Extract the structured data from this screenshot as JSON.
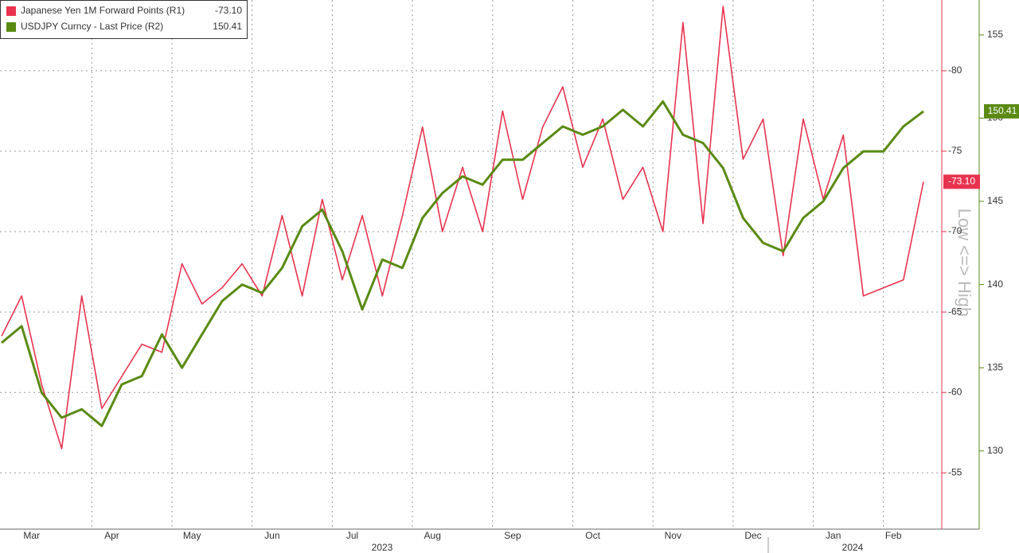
{
  "chart_data": {
    "type": "line",
    "categories": [
      null,
      null,
      "Mar",
      null,
      null,
      null,
      "Apr",
      null,
      null,
      null,
      "May",
      null,
      null,
      null,
      "Jun",
      null,
      null,
      null,
      "Jul",
      null,
      null,
      null,
      "Aug",
      null,
      null,
      null,
      "Sep",
      null,
      null,
      null,
      "Oct",
      null,
      null,
      null,
      "Nov",
      null,
      null,
      null,
      "Dec",
      null,
      null,
      null,
      "Jan",
      null,
      null,
      "Feb",
      null
    ],
    "year_labels": [
      "2023",
      "2024"
    ],
    "axis_annotation": "Low <=> High",
    "series": [
      {
        "name": "Japanese Yen 1M Forward Points (R1)",
        "color": "#e8334f",
        "axis": "y",
        "last_label": "-73.10",
        "values": [
          -63.5,
          -66,
          -60.5,
          -56.5,
          -66,
          -59,
          -61,
          -63,
          -62.5,
          -68,
          -65.5,
          -66.5,
          -68,
          -66,
          -71,
          -66,
          -72,
          -67,
          -71,
          -66,
          -71,
          -76.5,
          -70,
          -74,
          -70,
          -77.5,
          -72,
          -76.5,
          -79,
          -74,
          -77,
          -72,
          -74,
          -70,
          -83,
          -70.5,
          -84,
          -74.5,
          -77,
          -68.5,
          -77,
          -72,
          -76,
          -66,
          -66.5,
          -67,
          -73.1
        ]
      },
      {
        "name": "USDJPY Curncy - Last Price (R2)",
        "color": "#5a8a12",
        "axis": "y2",
        "last_label": "150.41",
        "values": [
          136.5,
          137.5,
          133.5,
          132,
          132.5,
          131.5,
          134,
          134.5,
          137,
          135,
          137,
          139,
          140,
          139.5,
          141,
          143.5,
          144.5,
          142,
          138.5,
          141.5,
          141,
          144,
          145.5,
          146.5,
          146,
          147.5,
          147.5,
          148.5,
          149.5,
          149,
          149.5,
          150.5,
          149.5,
          151,
          149,
          148.5,
          147,
          144,
          142.5,
          142,
          144,
          145,
          147,
          148,
          148,
          149.5,
          150.41
        ]
      }
    ],
    "ylim": [
      -51.5,
      -84.4
    ],
    "yticks": [
      -55,
      -60,
      -65,
      -70,
      -75,
      -80
    ],
    "y2lim": [
      125.3,
      157.1
    ],
    "y2ticks": [
      130,
      135,
      140,
      145,
      150,
      155
    ],
    "grid": true
  }
}
